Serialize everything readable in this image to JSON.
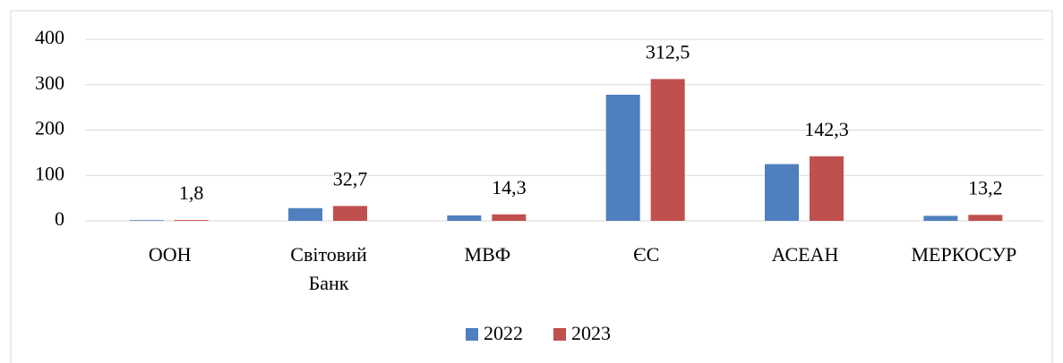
{
  "chart_data": {
    "type": "bar",
    "categories": [
      "ООН",
      "Світовий Банк",
      "МВФ",
      "ЄС",
      "АСЕАН",
      "МЕРКОСУР"
    ],
    "series": [
      {
        "name": "2022",
        "color": "#4f7fbe",
        "values": [
          1.5,
          28,
          12,
          278,
          125,
          11
        ]
      },
      {
        "name": "2023",
        "color": "#c0504d",
        "values": [
          1.8,
          32.7,
          14.3,
          312.5,
          142.3,
          13.2
        ],
        "value_labels": [
          "1,8",
          "32,7",
          "14,3",
          "312,5",
          "142,3",
          "13,2"
        ]
      }
    ],
    "ylim": [
      0,
      400
    ],
    "yticks": [
      0,
      100,
      200,
      300,
      400
    ],
    "grid": true,
    "legend": "bottom"
  }
}
